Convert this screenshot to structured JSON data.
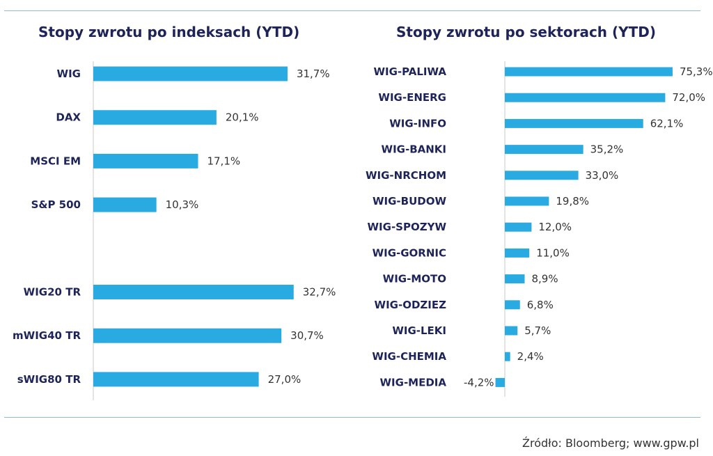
{
  "source": "Źródło: Bloomberg; www.gpw.pl",
  "colors": {
    "bar": "#29abe2",
    "axis": "#c8c8c8",
    "title": "#1e2458",
    "rule": "#8fb9d6"
  },
  "chart_data": [
    {
      "type": "bar",
      "orientation": "horizontal",
      "title": "Stopy zwrotu po indeksach (YTD)",
      "categories": [
        "WIG",
        "DAX",
        "MSCI EM",
        "S&P 500",
        "",
        "WIG20 TR",
        "mWIG40 TR",
        "sWIG80 TR"
      ],
      "values": [
        31.7,
        20.1,
        17.1,
        10.3,
        null,
        32.7,
        30.7,
        27.0
      ],
      "value_labels": [
        "31,7%",
        "20,1%",
        "17,1%",
        "10,3%",
        "",
        "32,7%",
        "30,7%",
        "27,0%"
      ],
      "xlim": [
        0,
        40
      ]
    },
    {
      "type": "bar",
      "orientation": "horizontal",
      "title": "Stopy zwrotu po sektorach (YTD)",
      "categories": [
        "WIG-PALIWA",
        "WIG-ENERG",
        "WIG-INFO",
        "WIG-BANKI",
        "WIG-NRCHOM",
        "WIG-BUDOW",
        "WIG-SPOZYW",
        "WIG-GORNIC",
        "WIG-MOTO",
        "WIG-ODZIEZ",
        "WIG-LEKI",
        "WIG-CHEMIA",
        "WIG-MEDIA"
      ],
      "values": [
        75.3,
        72.0,
        62.1,
        35.2,
        33.0,
        19.8,
        12.0,
        11.0,
        8.9,
        6.8,
        5.7,
        2.4,
        -4.2
      ],
      "value_labels": [
        "75,3%",
        "72,0%",
        "62,1%",
        "35,2%",
        "33,0%",
        "19,8%",
        "12,0%",
        "11,0%",
        "8,9%",
        "6,8%",
        "5,7%",
        "2,4%",
        "-4,2%"
      ],
      "xlim": [
        -10,
        80
      ]
    }
  ]
}
